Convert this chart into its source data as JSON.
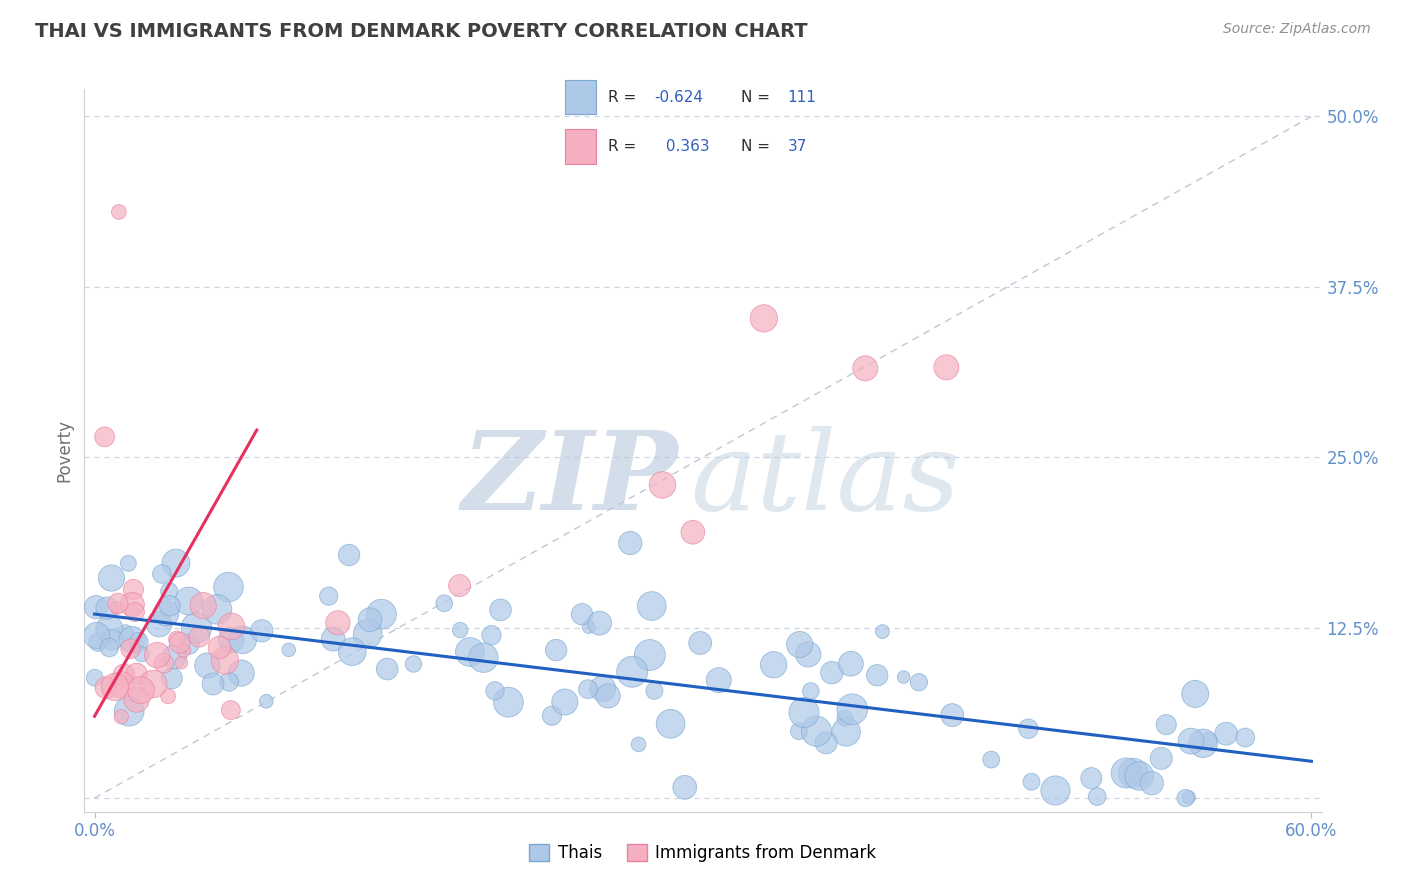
{
  "title": "THAI VS IMMIGRANTS FROM DENMARK POVERTY CORRELATION CHART",
  "source": "Source: ZipAtlas.com",
  "ylabel": "Poverty",
  "xlim": [
    -0.005,
    0.605
  ],
  "ylim": [
    -0.01,
    0.52
  ],
  "ytick_positions": [
    0.0,
    0.125,
    0.25,
    0.375,
    0.5
  ],
  "ytick_labels": [
    "",
    "12.5%",
    "25.0%",
    "37.5%",
    "50.0%"
  ],
  "blue_R": -0.624,
  "blue_N": 111,
  "pink_R": 0.363,
  "pink_N": 37,
  "blue_color": "#aec8e8",
  "pink_color": "#f4b0c0",
  "blue_edge": "#7aa8d0",
  "pink_edge": "#e880a0",
  "trend_blue": "#2060c0",
  "trend_pink": "#e83060",
  "ref_line_color": "#c0c8d4",
  "grid_color": "#c8d4e0",
  "title_color": "#404040",
  "axis_label_color": "#707070",
  "tick_color": "#6090c8",
  "watermark_ZIP_color": "#b8c8dc",
  "watermark_atlas_color": "#c0d0e0",
  "background_color": "#ffffff",
  "legend_text_color": "#303030",
  "legend_val_color": "#3060c0",
  "source_color": "#909090"
}
